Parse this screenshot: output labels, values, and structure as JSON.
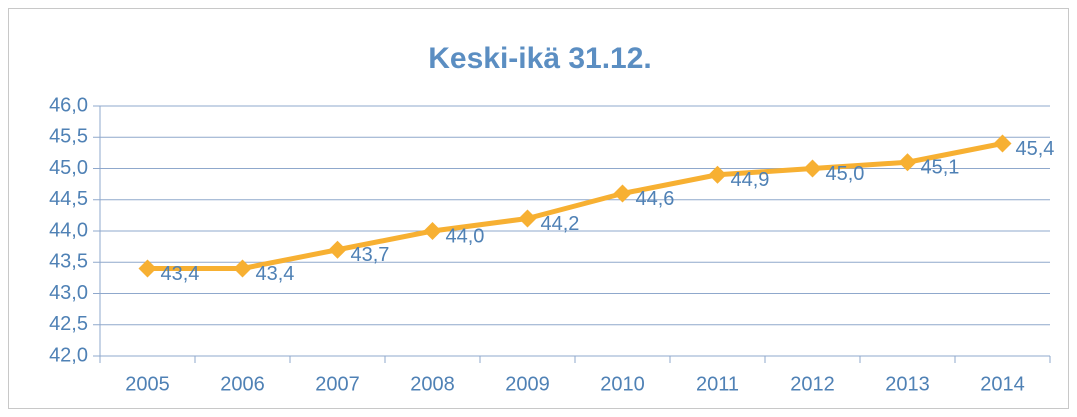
{
  "chart_data": {
    "type": "line",
    "title": "Keski-ikä 31.12.",
    "categories": [
      "2005",
      "2006",
      "2007",
      "2008",
      "2009",
      "2010",
      "2011",
      "2012",
      "2013",
      "2014"
    ],
    "series": [
      {
        "name": "Keski-ikä",
        "color": "#f7b032",
        "values": [
          43.4,
          43.4,
          43.7,
          44.0,
          44.2,
          44.6,
          44.9,
          45.0,
          45.1,
          45.4
        ],
        "value_labels": [
          "43,4",
          "43,4",
          "43,7",
          "44,0",
          "44,2",
          "44,6",
          "44,9",
          "45,0",
          "45,1",
          "45,4"
        ]
      }
    ],
    "ylim": [
      42,
      46
    ],
    "yticks": [
      {
        "value": 42,
        "label": "42,0"
      },
      {
        "value": 42.5,
        "label": "42,5"
      },
      {
        "value": 43,
        "label": "43,0"
      },
      {
        "value": 43.5,
        "label": "43,5"
      },
      {
        "value": 44,
        "label": "44,0"
      },
      {
        "value": 44.5,
        "label": "44,5"
      },
      {
        "value": 45,
        "label": "45,0"
      },
      {
        "value": 45.5,
        "label": "45,5"
      },
      {
        "value": 46,
        "label": "46,0"
      }
    ],
    "grid": true
  }
}
